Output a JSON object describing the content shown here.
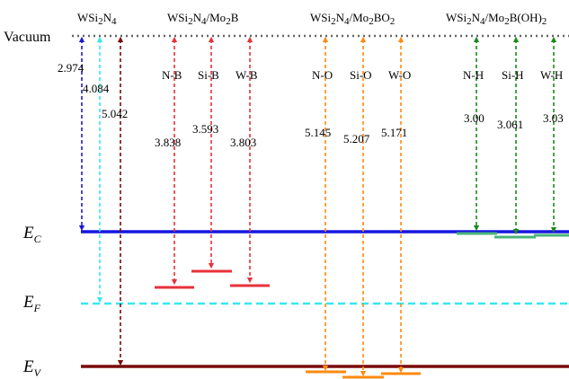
{
  "vacuum_label": "Vacuum",
  "levels": {
    "ec": {
      "main": "E",
      "sub": "C",
      "color": "#1515e0"
    },
    "ef": {
      "main": "E",
      "sub": "F",
      "color": "#33e8f0"
    },
    "ev": {
      "main": "E",
      "sub": "V",
      "color": "#7a0a0a"
    }
  },
  "headers": {
    "h1": {
      "a": "WSi",
      "b": "2",
      "c": "N",
      "d": "4",
      "e": "",
      "f": "",
      "g": "",
      "h": ""
    },
    "h2": {
      "a": "WSi",
      "b": "2",
      "c": "N",
      "d": "4",
      "e": "/Mo",
      "f": "2",
      "g": "B",
      "h": ""
    },
    "h3": {
      "a": "WSi",
      "b": "2",
      "c": "N",
      "d": "4",
      "e": "/Mo",
      "f": "2",
      "g": "BO",
      "h": "2"
    },
    "h4": {
      "a": "WSi",
      "b": "2",
      "c": "N",
      "d": "4",
      "e": "/Mo",
      "f": "2",
      "g": "B(OH)",
      "h": "2"
    }
  },
  "arrows": [
    {
      "label": "",
      "value": "2.974",
      "color": "#1a1ad6"
    },
    {
      "label": "",
      "value": "4.084",
      "color": "#33e8f0"
    },
    {
      "label": "",
      "value": "5.042",
      "color": "#7a0a0a"
    },
    {
      "label": "N-B",
      "value": "3.838",
      "color": "#e8323a"
    },
    {
      "label": "Si-B",
      "value": "3.593",
      "color": "#e8323a"
    },
    {
      "label": "W-B",
      "value": "3.803",
      "color": "#e8323a"
    },
    {
      "label": "N-O",
      "value": "5.145",
      "color": "#ff8a10"
    },
    {
      "label": "Si-O",
      "value": "5.207",
      "color": "#ff8a10"
    },
    {
      "label": "W-O",
      "value": "5.171",
      "color": "#ff8a10"
    },
    {
      "label": "N-H",
      "value": "3.00",
      "color": "#1a8a1a"
    },
    {
      "label": "Si-H",
      "value": "3.061",
      "color": "#1a8a1a"
    },
    {
      "label": "W-H",
      "value": "3.03",
      "color": "#1a8a1a"
    }
  ]
}
